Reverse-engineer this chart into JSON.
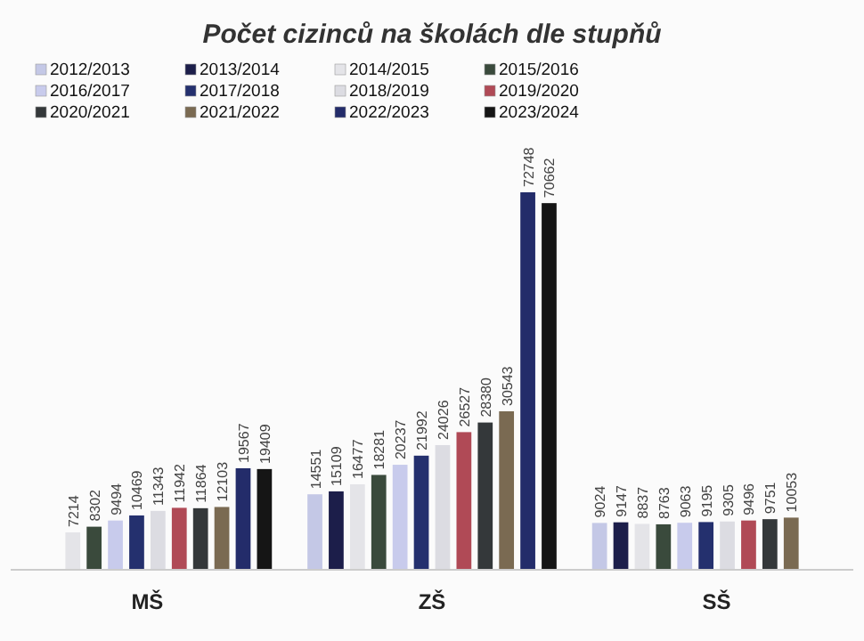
{
  "chart_data": {
    "type": "bar",
    "title": "Počet cizinců na školách dle stupňů",
    "categories": [
      "MŠ",
      "ZŠ",
      "SŠ"
    ],
    "data_labels": true,
    "legend": "top",
    "series": [
      {
        "name": "2012/2013",
        "color": "#c4c8e6",
        "values": [
          null,
          14551,
          9024
        ]
      },
      {
        "name": "2013/2014",
        "color": "#1c1e4a",
        "values": [
          null,
          15109,
          9147
        ]
      },
      {
        "name": "2014/2015",
        "color": "#e4e4e8",
        "values": [
          7214,
          16477,
          8837
        ]
      },
      {
        "name": "2015/2016",
        "color": "#3a4a3c",
        "values": [
          8302,
          18281,
          8763
        ]
      },
      {
        "name": "2016/2017",
        "color": "#c8cbec",
        "values": [
          9494,
          20237,
          9063
        ]
      },
      {
        "name": "2017/2018",
        "color": "#24306e",
        "values": [
          10469,
          21992,
          9195
        ]
      },
      {
        "name": "2018/2019",
        "color": "#dcdce2",
        "values": [
          11343,
          24026,
          9305
        ]
      },
      {
        "name": "2019/2020",
        "color": "#b04a56",
        "values": [
          11942,
          26527,
          9496
        ]
      },
      {
        "name": "2020/2021",
        "color": "#34383a",
        "values": [
          11864,
          28380,
          9751
        ]
      },
      {
        "name": "2021/2022",
        "color": "#7a6a52",
        "values": [
          12103,
          30543,
          10053
        ]
      },
      {
        "name": "2022/2023",
        "color": "#232c6a",
        "values": [
          19567,
          72748,
          null
        ]
      },
      {
        "name": "2023/2024",
        "color": "#151515",
        "values": [
          19409,
          70662,
          null
        ]
      }
    ]
  }
}
